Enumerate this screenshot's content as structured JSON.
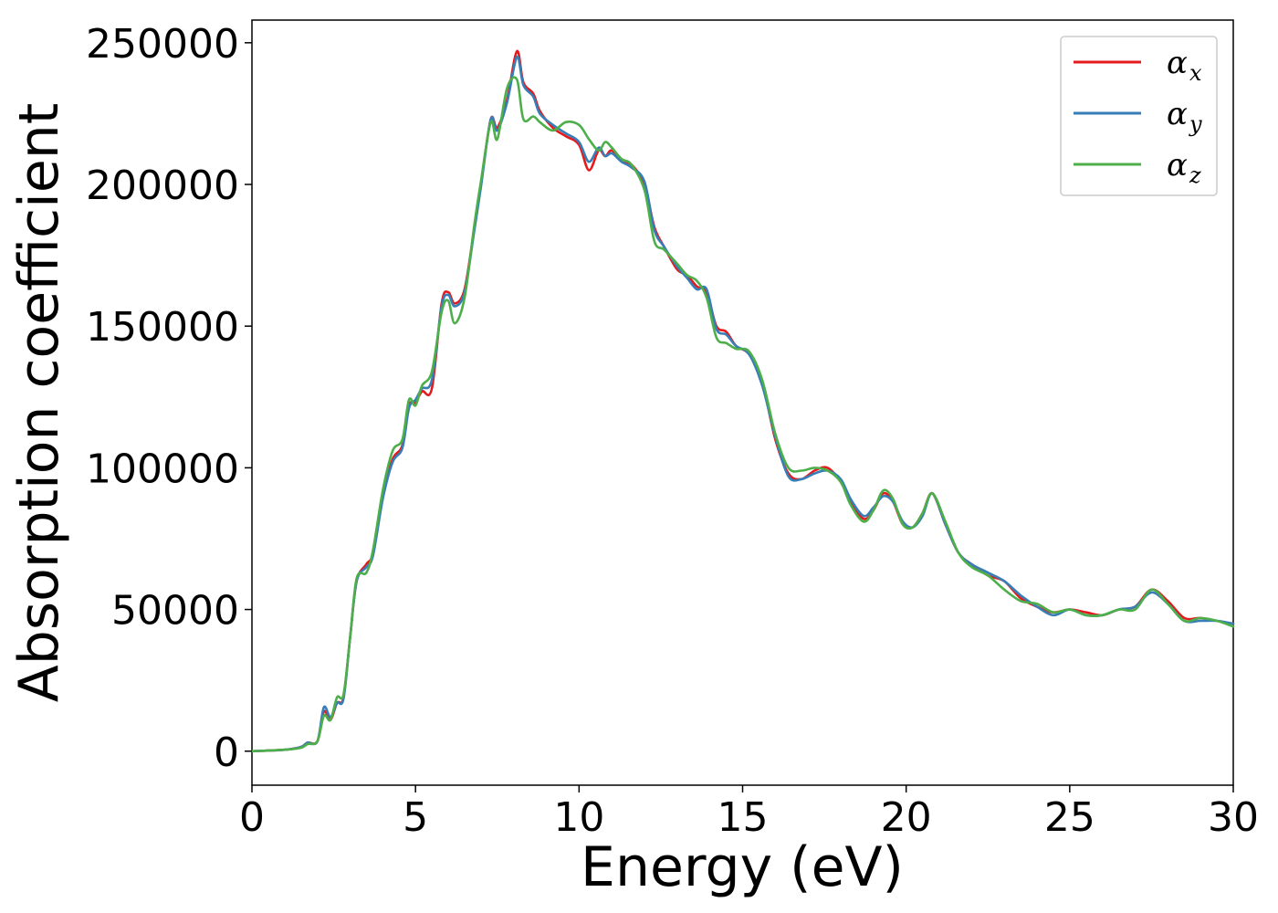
{
  "chart_data": {
    "type": "line",
    "title": "",
    "xlabel": "Energy (eV)",
    "ylabel": "Absorption coefficient",
    "xlim": [
      0,
      30
    ],
    "ylim": [
      -12000,
      258000
    ],
    "xticks": [
      0,
      5,
      10,
      15,
      20,
      25,
      30
    ],
    "xtick_labels": [
      "0",
      "5",
      "10",
      "15",
      "20",
      "25",
      "30"
    ],
    "yticks": [
      0,
      50000,
      100000,
      150000,
      200000,
      250000
    ],
    "ytick_labels": [
      "0",
      "50000",
      "100000",
      "150000",
      "200000",
      "250000"
    ],
    "grid": false,
    "legend_position": "top-right",
    "series": [
      {
        "name": "α",
        "subscript": "x",
        "color": "#e41a1c",
        "points": [
          [
            0,
            0
          ],
          [
            1,
            500
          ],
          [
            1.5,
            1500
          ],
          [
            1.7,
            3000
          ],
          [
            2.0,
            3500
          ],
          [
            2.2,
            14000
          ],
          [
            2.4,
            11000
          ],
          [
            2.6,
            17000
          ],
          [
            2.8,
            19000
          ],
          [
            3.0,
            40000
          ],
          [
            3.2,
            60000
          ],
          [
            3.5,
            66000
          ],
          [
            3.7,
            70000
          ],
          [
            4.0,
            90000
          ],
          [
            4.3,
            103000
          ],
          [
            4.6,
            108000
          ],
          [
            4.8,
            122000
          ],
          [
            5.0,
            123000
          ],
          [
            5.2,
            127000
          ],
          [
            5.5,
            128000
          ],
          [
            5.8,
            158000
          ],
          [
            6.0,
            162000
          ],
          [
            6.2,
            158000
          ],
          [
            6.5,
            163000
          ],
          [
            6.8,
            185000
          ],
          [
            7.0,
            200000
          ],
          [
            7.3,
            223000
          ],
          [
            7.5,
            220000
          ],
          [
            7.8,
            230000
          ],
          [
            8.1,
            247000
          ],
          [
            8.3,
            236000
          ],
          [
            8.6,
            232000
          ],
          [
            8.8,
            226000
          ],
          [
            9.2,
            220000
          ],
          [
            9.6,
            217000
          ],
          [
            10.0,
            214000
          ],
          [
            10.3,
            205000
          ],
          [
            10.6,
            212000
          ],
          [
            10.8,
            210000
          ],
          [
            11.0,
            212000
          ],
          [
            11.3,
            208000
          ],
          [
            11.6,
            207000
          ],
          [
            12.0,
            200000
          ],
          [
            12.3,
            185000
          ],
          [
            12.6,
            178000
          ],
          [
            13.0,
            170000
          ],
          [
            13.3,
            168000
          ],
          [
            13.6,
            164000
          ],
          [
            13.9,
            162000
          ],
          [
            14.2,
            150000
          ],
          [
            14.5,
            148000
          ],
          [
            14.8,
            143000
          ],
          [
            15.2,
            140000
          ],
          [
            15.6,
            130000
          ],
          [
            16.0,
            110000
          ],
          [
            16.4,
            98000
          ],
          [
            16.8,
            96000
          ],
          [
            17.2,
            99000
          ],
          [
            17.6,
            100000
          ],
          [
            18.0,
            95000
          ],
          [
            18.3,
            88000
          ],
          [
            18.7,
            82000
          ],
          [
            19.0,
            85000
          ],
          [
            19.3,
            91000
          ],
          [
            19.6,
            88000
          ],
          [
            19.9,
            80000
          ],
          [
            20.2,
            79000
          ],
          [
            20.5,
            84000
          ],
          [
            20.8,
            91000
          ],
          [
            21.2,
            80000
          ],
          [
            21.6,
            70000
          ],
          [
            22.0,
            66000
          ],
          [
            22.5,
            62000
          ],
          [
            23.0,
            60000
          ],
          [
            23.5,
            54000
          ],
          [
            24.0,
            51000
          ],
          [
            24.5,
            49000
          ],
          [
            25.0,
            50000
          ],
          [
            25.5,
            49000
          ],
          [
            26.0,
            48000
          ],
          [
            26.5,
            50000
          ],
          [
            27.0,
            51000
          ],
          [
            27.5,
            57000
          ],
          [
            28.0,
            53000
          ],
          [
            28.5,
            47000
          ],
          [
            29.0,
            47000
          ],
          [
            29.5,
            46000
          ],
          [
            30.0,
            45000
          ]
        ]
      },
      {
        "name": "α",
        "subscript": "y",
        "color": "#377eb8",
        "points": [
          [
            0,
            0
          ],
          [
            1,
            500
          ],
          [
            1.5,
            1500
          ],
          [
            1.7,
            3000
          ],
          [
            2.0,
            3500
          ],
          [
            2.2,
            15500
          ],
          [
            2.4,
            12000
          ],
          [
            2.6,
            17000
          ],
          [
            2.8,
            18500
          ],
          [
            3.0,
            40000
          ],
          [
            3.2,
            60000
          ],
          [
            3.5,
            65000
          ],
          [
            3.7,
            69000
          ],
          [
            4.0,
            89000
          ],
          [
            4.3,
            102000
          ],
          [
            4.6,
            107000
          ],
          [
            4.8,
            121000
          ],
          [
            5.0,
            124000
          ],
          [
            5.2,
            128000
          ],
          [
            5.5,
            131000
          ],
          [
            5.8,
            157000
          ],
          [
            6.0,
            161000
          ],
          [
            6.2,
            157000
          ],
          [
            6.5,
            162000
          ],
          [
            6.8,
            184000
          ],
          [
            7.0,
            199000
          ],
          [
            7.3,
            223000
          ],
          [
            7.5,
            219000
          ],
          [
            7.8,
            229000
          ],
          [
            8.1,
            245000
          ],
          [
            8.3,
            235000
          ],
          [
            8.6,
            231000
          ],
          [
            8.8,
            225000
          ],
          [
            9.2,
            221000
          ],
          [
            9.6,
            218000
          ],
          [
            10.0,
            215000
          ],
          [
            10.3,
            208000
          ],
          [
            10.6,
            213000
          ],
          [
            10.8,
            210000
          ],
          [
            11.0,
            211000
          ],
          [
            11.3,
            208000
          ],
          [
            11.6,
            206000
          ],
          [
            12.0,
            201000
          ],
          [
            12.3,
            184000
          ],
          [
            12.6,
            178000
          ],
          [
            13.0,
            171000
          ],
          [
            13.3,
            167000
          ],
          [
            13.6,
            163000
          ],
          [
            13.9,
            163000
          ],
          [
            14.2,
            149000
          ],
          [
            14.5,
            147000
          ],
          [
            14.8,
            143000
          ],
          [
            15.2,
            140000
          ],
          [
            15.6,
            129000
          ],
          [
            16.0,
            111000
          ],
          [
            16.4,
            97000
          ],
          [
            16.8,
            96000
          ],
          [
            17.2,
            98000
          ],
          [
            17.6,
            99000
          ],
          [
            18.0,
            96000
          ],
          [
            18.3,
            89000
          ],
          [
            18.7,
            83000
          ],
          [
            19.0,
            86000
          ],
          [
            19.3,
            90000
          ],
          [
            19.6,
            88000
          ],
          [
            19.9,
            81000
          ],
          [
            20.2,
            79000
          ],
          [
            20.5,
            83000
          ],
          [
            20.8,
            91000
          ],
          [
            21.2,
            80000
          ],
          [
            21.6,
            70000
          ],
          [
            22.0,
            66000
          ],
          [
            22.5,
            63000
          ],
          [
            23.0,
            60000
          ],
          [
            23.5,
            55000
          ],
          [
            24.0,
            51000
          ],
          [
            24.5,
            48000
          ],
          [
            25.0,
            50000
          ],
          [
            25.5,
            48000
          ],
          [
            26.0,
            48000
          ],
          [
            26.5,
            50000
          ],
          [
            27.0,
            51000
          ],
          [
            27.5,
            56000
          ],
          [
            28.0,
            52000
          ],
          [
            28.5,
            46000
          ],
          [
            29.0,
            46000
          ],
          [
            29.5,
            46000
          ],
          [
            30.0,
            45000
          ]
        ]
      },
      {
        "name": "α",
        "subscript": "z",
        "color": "#4daf4a",
        "points": [
          [
            0,
            0
          ],
          [
            1,
            500
          ],
          [
            1.5,
            1200
          ],
          [
            1.7,
            2500
          ],
          [
            2.0,
            3500
          ],
          [
            2.2,
            12500
          ],
          [
            2.4,
            11000
          ],
          [
            2.6,
            19000
          ],
          [
            2.8,
            20000
          ],
          [
            3.0,
            40000
          ],
          [
            3.2,
            61000
          ],
          [
            3.5,
            63000
          ],
          [
            3.7,
            71000
          ],
          [
            4.0,
            92000
          ],
          [
            4.3,
            106000
          ],
          [
            4.6,
            110000
          ],
          [
            4.8,
            124000
          ],
          [
            5.0,
            122000
          ],
          [
            5.2,
            129000
          ],
          [
            5.5,
            134000
          ],
          [
            5.8,
            155000
          ],
          [
            6.0,
            159000
          ],
          [
            6.2,
            151000
          ],
          [
            6.5,
            160000
          ],
          [
            6.8,
            186000
          ],
          [
            7.0,
            201000
          ],
          [
            7.3,
            222000
          ],
          [
            7.5,
            216000
          ],
          [
            7.8,
            234000
          ],
          [
            8.1,
            237000
          ],
          [
            8.3,
            223000
          ],
          [
            8.6,
            224000
          ],
          [
            8.8,
            222000
          ],
          [
            9.2,
            219000
          ],
          [
            9.6,
            222000
          ],
          [
            10.0,
            221000
          ],
          [
            10.3,
            216000
          ],
          [
            10.6,
            212000
          ],
          [
            10.8,
            215000
          ],
          [
            11.0,
            213000
          ],
          [
            11.3,
            209000
          ],
          [
            11.6,
            207000
          ],
          [
            12.0,
            198000
          ],
          [
            12.3,
            180000
          ],
          [
            12.6,
            177000
          ],
          [
            13.0,
            172000
          ],
          [
            13.3,
            168000
          ],
          [
            13.6,
            166000
          ],
          [
            13.9,
            160000
          ],
          [
            14.2,
            146000
          ],
          [
            14.5,
            144000
          ],
          [
            14.8,
            142000
          ],
          [
            15.2,
            141000
          ],
          [
            15.6,
            131000
          ],
          [
            16.0,
            112000
          ],
          [
            16.4,
            100000
          ],
          [
            16.8,
            99000
          ],
          [
            17.2,
            100000
          ],
          [
            17.6,
            99000
          ],
          [
            18.0,
            95000
          ],
          [
            18.3,
            87000
          ],
          [
            18.7,
            81000
          ],
          [
            19.0,
            85000
          ],
          [
            19.3,
            92000
          ],
          [
            19.6,
            89000
          ],
          [
            19.9,
            80000
          ],
          [
            20.2,
            79000
          ],
          [
            20.5,
            84000
          ],
          [
            20.8,
            91000
          ],
          [
            21.2,
            81000
          ],
          [
            21.6,
            70000
          ],
          [
            22.0,
            65000
          ],
          [
            22.5,
            62000
          ],
          [
            23.0,
            57000
          ],
          [
            23.5,
            53000
          ],
          [
            24.0,
            52000
          ],
          [
            24.5,
            49000
          ],
          [
            25.0,
            50000
          ],
          [
            25.5,
            48000
          ],
          [
            26.0,
            48000
          ],
          [
            26.5,
            50000
          ],
          [
            27.0,
            50000
          ],
          [
            27.5,
            57000
          ],
          [
            28.0,
            52000
          ],
          [
            28.5,
            46000
          ],
          [
            29.0,
            47000
          ],
          [
            29.5,
            46000
          ],
          [
            30.0,
            44000
          ]
        ]
      }
    ]
  }
}
